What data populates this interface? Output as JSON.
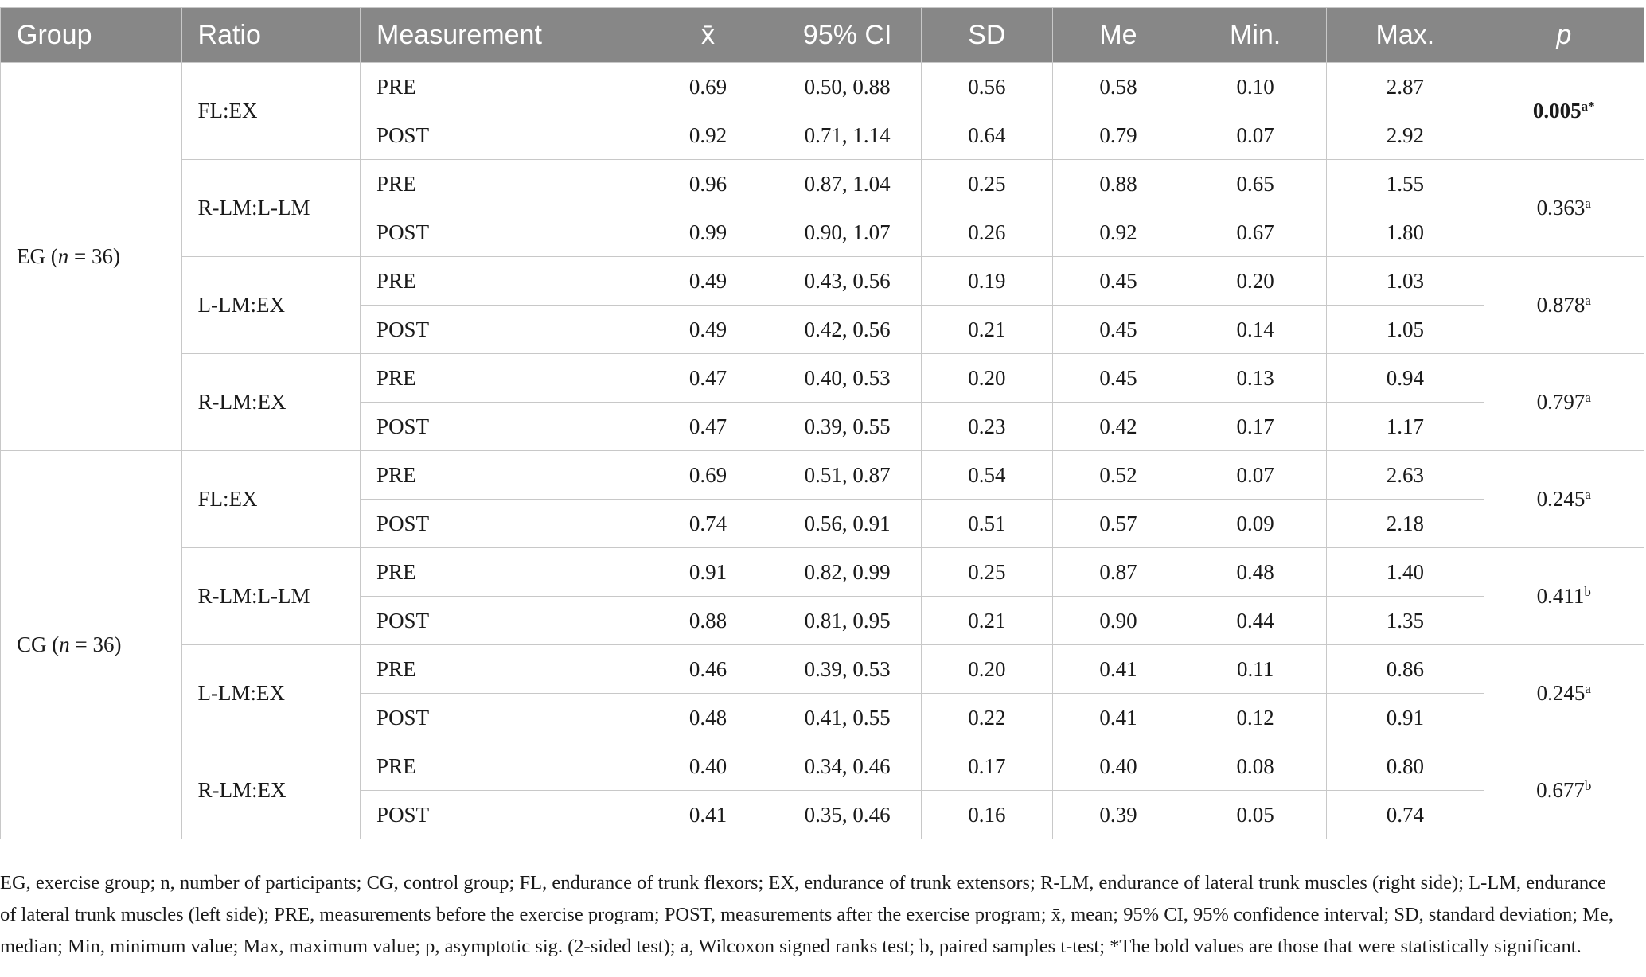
{
  "table": {
    "headers": [
      "Group",
      "Ratio",
      "Measurement",
      "x̄",
      "95% CI",
      "SD",
      "Me",
      "Min.",
      "Max.",
      "p"
    ],
    "groups": [
      {
        "label": "EG (",
        "n_symbol": "n",
        "n_value": " = 36)",
        "ratios": [
          {
            "label": "FL:EX",
            "p": "0.005",
            "p_sup": "a*",
            "p_bold": true,
            "rows": [
              {
                "measurement": "PRE",
                "mean": "0.69",
                "ci": "0.50, 0.88",
                "sd": "0.56",
                "me": "0.58",
                "min": "0.10",
                "max": "2.87"
              },
              {
                "measurement": "POST",
                "mean": "0.92",
                "ci": "0.71, 1.14",
                "sd": "0.64",
                "me": "0.79",
                "min": "0.07",
                "max": "2.92"
              }
            ]
          },
          {
            "label": "R-LM:L-LM",
            "p": "0.363",
            "p_sup": "a",
            "p_bold": false,
            "rows": [
              {
                "measurement": "PRE",
                "mean": "0.96",
                "ci": "0.87, 1.04",
                "sd": "0.25",
                "me": "0.88",
                "min": "0.65",
                "max": "1.55"
              },
              {
                "measurement": "POST",
                "mean": "0.99",
                "ci": "0.90, 1.07",
                "sd": "0.26",
                "me": "0.92",
                "min": "0.67",
                "max": "1.80"
              }
            ]
          },
          {
            "label": "L-LM:EX",
            "p": "0.878",
            "p_sup": "a",
            "p_bold": false,
            "rows": [
              {
                "measurement": "PRE",
                "mean": "0.49",
                "ci": "0.43, 0.56",
                "sd": "0.19",
                "me": "0.45",
                "min": "0.20",
                "max": "1.03"
              },
              {
                "measurement": "POST",
                "mean": "0.49",
                "ci": "0.42, 0.56",
                "sd": "0.21",
                "me": "0.45",
                "min": "0.14",
                "max": "1.05"
              }
            ]
          },
          {
            "label": "R-LM:EX",
            "p": "0.797",
            "p_sup": "a",
            "p_bold": false,
            "rows": [
              {
                "measurement": "PRE",
                "mean": "0.47",
                "ci": "0.40, 0.53",
                "sd": "0.20",
                "me": "0.45",
                "min": "0.13",
                "max": "0.94"
              },
              {
                "measurement": "POST",
                "mean": "0.47",
                "ci": "0.39, 0.55",
                "sd": "0.23",
                "me": "0.42",
                "min": "0.17",
                "max": "1.17"
              }
            ]
          }
        ]
      },
      {
        "label": "CG (",
        "n_symbol": "n",
        "n_value": " = 36)",
        "ratios": [
          {
            "label": "FL:EX",
            "p": "0.245",
            "p_sup": "a",
            "p_bold": false,
            "rows": [
              {
                "measurement": "PRE",
                "mean": "0.69",
                "ci": "0.51, 0.87",
                "sd": "0.54",
                "me": "0.52",
                "min": "0.07",
                "max": "2.63"
              },
              {
                "measurement": "POST",
                "mean": "0.74",
                "ci": "0.56, 0.91",
                "sd": "0.51",
                "me": "0.57",
                "min": "0.09",
                "max": "2.18"
              }
            ]
          },
          {
            "label": "R-LM:L-LM",
            "p": "0.411",
            "p_sup": "b",
            "p_bold": false,
            "rows": [
              {
                "measurement": "PRE",
                "mean": "0.91",
                "ci": "0.82, 0.99",
                "sd": "0.25",
                "me": "0.87",
                "min": "0.48",
                "max": "1.40"
              },
              {
                "measurement": "POST",
                "mean": "0.88",
                "ci": "0.81, 0.95",
                "sd": "0.21",
                "me": "0.90",
                "min": "0.44",
                "max": "1.35"
              }
            ]
          },
          {
            "label": "L-LM:EX",
            "p": "0.245",
            "p_sup": "a",
            "p_bold": false,
            "rows": [
              {
                "measurement": "PRE",
                "mean": "0.46",
                "ci": "0.39, 0.53",
                "sd": "0.20",
                "me": "0.41",
                "min": "0.11",
                "max": "0.86"
              },
              {
                "measurement": "POST",
                "mean": "0.48",
                "ci": "0.41, 0.55",
                "sd": "0.22",
                "me": "0.41",
                "min": "0.12",
                "max": "0.91"
              }
            ]
          },
          {
            "label": "R-LM:EX",
            "p": "0.677",
            "p_sup": "b",
            "p_bold": false,
            "rows": [
              {
                "measurement": "PRE",
                "mean": "0.40",
                "ci": "0.34, 0.46",
                "sd": "0.17",
                "me": "0.40",
                "min": "0.08",
                "max": "0.80"
              },
              {
                "measurement": "POST",
                "mean": "0.41",
                "ci": "0.35, 0.46",
                "sd": "0.16",
                "me": "0.39",
                "min": "0.05",
                "max": "0.74"
              }
            ]
          }
        ]
      }
    ]
  },
  "footnote": "EG, exercise group; n, number of participants; CG, control group; FL, endurance of trunk flexors; EX, endurance of trunk extensors; R-LM, endurance of lateral trunk muscles (right side); L-LM, endurance of lateral trunk muscles (left side); PRE, measurements before the exercise program; POST, measurements after the exercise program; x̄, mean; 95% CI, 95% confidence interval; SD, standard deviation; Me, median; Min, minimum value; Max, maximum value; p, asymptotic sig. (2-sided test); a, Wilcoxon signed ranks test; b, paired samples t-test; *The bold values are those that were statistically significant."
}
